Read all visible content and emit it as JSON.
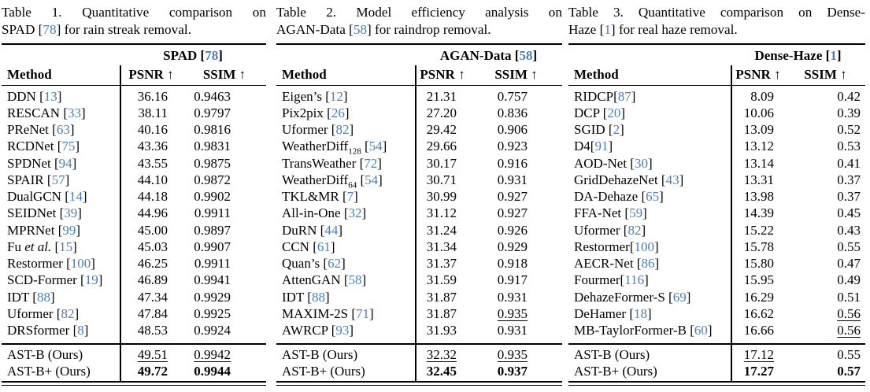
{
  "colors": {
    "cite": "#4b7dbe",
    "text": "#000000",
    "background": "#ffffff"
  },
  "tables": [
    {
      "caption": [
        [
          {
            "t": "Table 1. Quantitative comparison on"
          }
        ],
        [
          {
            "t": "SPAD ["
          },
          {
            "t": "78",
            "c": 1
          },
          {
            "t": "] for rain streak removal."
          }
        ]
      ],
      "dataset_header": {
        "pre": "SPAD ",
        "cite": "78"
      },
      "columns": {
        "method": "Method",
        "psnr": "PSNR ↑",
        "ssim": "SSIM ↑"
      },
      "rows": [
        {
          "method": {
            "pre": "DDN ",
            "cite": "13"
          },
          "psnr": {
            "t": "36.16"
          },
          "ssim": {
            "t": "0.9463"
          }
        },
        {
          "method": {
            "pre": "RESCAN ",
            "cite": "33"
          },
          "psnr": {
            "t": "38.11"
          },
          "ssim": {
            "t": "0.9797"
          }
        },
        {
          "method": {
            "pre": "PReNet ",
            "cite": "63"
          },
          "psnr": {
            "t": "40.16"
          },
          "ssim": {
            "t": "0.9816"
          }
        },
        {
          "method": {
            "pre": "RCDNet ",
            "cite": "75"
          },
          "psnr": {
            "t": "43.36"
          },
          "ssim": {
            "t": "0.9831"
          }
        },
        {
          "method": {
            "pre": "SPDNet ",
            "cite": "94"
          },
          "psnr": {
            "t": "43.55"
          },
          "ssim": {
            "t": "0.9875"
          }
        },
        {
          "method": {
            "pre": "SPAIR ",
            "cite": "57"
          },
          "psnr": {
            "t": "44.10"
          },
          "ssim": {
            "t": "0.9872"
          }
        },
        {
          "method": {
            "pre": "DualGCN ",
            "cite": "14"
          },
          "psnr": {
            "t": "44.18"
          },
          "ssim": {
            "t": "0.9902"
          }
        },
        {
          "method": {
            "pre": "SEIDNet ",
            "cite": "39"
          },
          "psnr": {
            "t": "44.96"
          },
          "ssim": {
            "t": "0.9911"
          }
        },
        {
          "method": {
            "pre": "MPRNet ",
            "cite": "99"
          },
          "psnr": {
            "t": "45.00"
          },
          "ssim": {
            "t": "0.9897"
          }
        },
        {
          "method": {
            "pre": "Fu ",
            "it": "et al.",
            "post": " ",
            "cite": "15"
          },
          "psnr": {
            "t": "45.03"
          },
          "ssim": {
            "t": "0.9907"
          }
        },
        {
          "method": {
            "pre": "Restormer ",
            "cite": "100"
          },
          "psnr": {
            "t": "46.25"
          },
          "ssim": {
            "t": "0.9911"
          }
        },
        {
          "method": {
            "pre": "SCD-Former ",
            "cite": "19"
          },
          "psnr": {
            "t": "46.89"
          },
          "ssim": {
            "t": "0.9941"
          }
        },
        {
          "method": {
            "pre": "IDT ",
            "cite": "88"
          },
          "psnr": {
            "t": "47.34"
          },
          "ssim": {
            "t": "0.9929"
          }
        },
        {
          "method": {
            "pre": "Uformer ",
            "cite": "82"
          },
          "psnr": {
            "t": "47.84"
          },
          "ssim": {
            "t": "0.9925"
          }
        },
        {
          "method": {
            "pre": "DRSformer ",
            "cite": "8"
          },
          "psnr": {
            "t": "48.53"
          },
          "ssim": {
            "t": "0.9924"
          }
        }
      ],
      "ours_rows": [
        {
          "method": {
            "pre": "AST-B (Ours)"
          },
          "psnr": {
            "t": "49.51",
            "u": 1
          },
          "ssim": {
            "t": "0.9942",
            "u": 1
          }
        },
        {
          "method": {
            "pre": "AST-B+ (Ours)"
          },
          "psnr": {
            "t": "49.72",
            "b": 1
          },
          "ssim": {
            "t": "0.9944",
            "b": 1
          }
        }
      ]
    },
    {
      "caption": [
        [
          {
            "t": "Table 2. Model efficiency analysis on"
          }
        ],
        [
          {
            "t": "AGAN-Data ["
          },
          {
            "t": "58",
            "c": 1
          },
          {
            "t": "] for raindrop removal."
          }
        ]
      ],
      "dataset_header": {
        "pre": "AGAN-Data ",
        "cite": "58"
      },
      "columns": {
        "method": "Method",
        "psnr": "PSNR ↑",
        "ssim": "SSIM ↑"
      },
      "rows": [
        {
          "method": {
            "pre": "Eigen’s ",
            "cite": "12"
          },
          "psnr": {
            "t": "21.31"
          },
          "ssim": {
            "t": "0.757"
          }
        },
        {
          "method": {
            "pre": "Pix2pix ",
            "cite": "26"
          },
          "psnr": {
            "t": "27.20"
          },
          "ssim": {
            "t": "0.836"
          }
        },
        {
          "method": {
            "pre": "Uformer ",
            "cite": "82"
          },
          "psnr": {
            "t": "29.42"
          },
          "ssim": {
            "t": "0.906"
          }
        },
        {
          "method": {
            "pre": "WeatherDiff",
            "sub": "128",
            "post": " ",
            "cite": "54"
          },
          "psnr": {
            "t": "29.66"
          },
          "ssim": {
            "t": "0.923"
          }
        },
        {
          "method": {
            "pre": "TransWeather ",
            "cite": "72"
          },
          "psnr": {
            "t": "30.17"
          },
          "ssim": {
            "t": "0.916"
          }
        },
        {
          "method": {
            "pre": "WeatherDiff",
            "sub": "64",
            "post": " ",
            "cite": "54"
          },
          "psnr": {
            "t": "30.71"
          },
          "ssim": {
            "t": "0.931"
          }
        },
        {
          "method": {
            "pre": "TKL&MR ",
            "cite": "7"
          },
          "psnr": {
            "t": "30.99"
          },
          "ssim": {
            "t": "0.927"
          }
        },
        {
          "method": {
            "pre": "All-in-One ",
            "cite": "32"
          },
          "psnr": {
            "t": "31.12"
          },
          "ssim": {
            "t": "0.927"
          }
        },
        {
          "method": {
            "pre": "DuRN ",
            "cite": "44"
          },
          "psnr": {
            "t": "31.24"
          },
          "ssim": {
            "t": "0.926"
          }
        },
        {
          "method": {
            "pre": "CCN ",
            "cite": "61"
          },
          "psnr": {
            "t": "31.34"
          },
          "ssim": {
            "t": "0.929"
          }
        },
        {
          "method": {
            "pre": "Quan’s ",
            "cite": "62"
          },
          "psnr": {
            "t": "31.37"
          },
          "ssim": {
            "t": "0.918"
          }
        },
        {
          "method": {
            "pre": "AttenGAN ",
            "cite": "58"
          },
          "psnr": {
            "t": "31.59"
          },
          "ssim": {
            "t": "0.917"
          }
        },
        {
          "method": {
            "pre": "IDT ",
            "cite": "88"
          },
          "psnr": {
            "t": "31.87"
          },
          "ssim": {
            "t": "0.931"
          }
        },
        {
          "method": {
            "pre": "MAXIM-2S ",
            "cite": "71"
          },
          "psnr": {
            "t": "31.87"
          },
          "ssim": {
            "t": "0.935",
            "u": 1
          }
        },
        {
          "method": {
            "pre": "AWRCP ",
            "cite": "93"
          },
          "psnr": {
            "t": "31.93"
          },
          "ssim": {
            "t": "0.931"
          }
        }
      ],
      "ours_rows": [
        {
          "method": {
            "pre": "AST-B (Ours)"
          },
          "psnr": {
            "t": "32.32",
            "u": 1
          },
          "ssim": {
            "t": "0.935",
            "u": 1
          }
        },
        {
          "method": {
            "pre": "AST-B+ (Ours)"
          },
          "psnr": {
            "t": "32.45",
            "b": 1
          },
          "ssim": {
            "t": "0.937",
            "b": 1
          }
        }
      ]
    },
    {
      "caption": [
        [
          {
            "t": "Table 3. Quantitative comparison on Dense-"
          }
        ],
        [
          {
            "t": "Haze ["
          },
          {
            "t": "1",
            "c": 1
          },
          {
            "t": "] for real haze removal."
          }
        ]
      ],
      "dataset_header": {
        "pre": "Dense-Haze ",
        "cite": "1"
      },
      "columns": {
        "method": "Method",
        "psnr": "PSNR ↑",
        "ssim": "SSIM ↑"
      },
      "rows": [
        {
          "method": {
            "pre": "RIDCP",
            "cite": "87"
          },
          "psnr": {
            "t": "8.09"
          },
          "ssim": {
            "t": "0.42"
          }
        },
        {
          "method": {
            "pre": "DCP ",
            "cite": "20"
          },
          "psnr": {
            "t": "10.06"
          },
          "ssim": {
            "t": "0.39"
          }
        },
        {
          "method": {
            "pre": "SGID ",
            "cite": "2"
          },
          "psnr": {
            "t": "13.09"
          },
          "ssim": {
            "t": "0.52"
          }
        },
        {
          "method": {
            "pre": "D4",
            "cite": "91"
          },
          "psnr": {
            "t": "13.12"
          },
          "ssim": {
            "t": "0.53"
          }
        },
        {
          "method": {
            "pre": "AOD-Net ",
            "cite": "30"
          },
          "psnr": {
            "t": "13.14"
          },
          "ssim": {
            "t": "0.41"
          }
        },
        {
          "method": {
            "pre": "GridDehazeNet ",
            "cite": "43"
          },
          "psnr": {
            "t": "13.31"
          },
          "ssim": {
            "t": "0.37"
          }
        },
        {
          "method": {
            "pre": "DA-Dehaze ",
            "cite": "65"
          },
          "psnr": {
            "t": "13.98"
          },
          "ssim": {
            "t": "0.37"
          }
        },
        {
          "method": {
            "pre": "FFA-Net ",
            "cite": "59"
          },
          "psnr": {
            "t": "14.39"
          },
          "ssim": {
            "t": "0.45"
          }
        },
        {
          "method": {
            "pre": "Uformer ",
            "cite": "82"
          },
          "psnr": {
            "t": "15.22"
          },
          "ssim": {
            "t": "0.43"
          }
        },
        {
          "method": {
            "pre": "Restormer",
            "cite": "100"
          },
          "psnr": {
            "t": "15.78"
          },
          "ssim": {
            "t": "0.55"
          }
        },
        {
          "method": {
            "pre": "AECR-Net ",
            "cite": "86"
          },
          "psnr": {
            "t": "15.80"
          },
          "ssim": {
            "t": "0.47"
          }
        },
        {
          "method": {
            "pre": "Fourmer",
            "cite": "116"
          },
          "psnr": {
            "t": "15.95"
          },
          "ssim": {
            "t": "0.49"
          }
        },
        {
          "method": {
            "pre": "DehazeFormer-S ",
            "cite": "69"
          },
          "psnr": {
            "t": "16.29"
          },
          "ssim": {
            "t": "0.51"
          }
        },
        {
          "method": {
            "pre": "DeHamer ",
            "cite": "18"
          },
          "psnr": {
            "t": "16.62"
          },
          "ssim": {
            "t": "0.56",
            "u": 1
          }
        },
        {
          "method": {
            "pre": "MB-TaylorFormer-B ",
            "cite": "60"
          },
          "psnr": {
            "t": "16.66"
          },
          "ssim": {
            "t": "0.56",
            "u": 1
          }
        }
      ],
      "ours_rows": [
        {
          "method": {
            "pre": "AST-B (Ours)"
          },
          "psnr": {
            "t": "17.12",
            "u": 1
          },
          "ssim": {
            "t": "0.55"
          }
        },
        {
          "method": {
            "pre": "AST-B+ (Ours)"
          },
          "psnr": {
            "t": "17.27",
            "b": 1
          },
          "ssim": {
            "t": "0.57",
            "b": 1
          }
        }
      ]
    }
  ]
}
